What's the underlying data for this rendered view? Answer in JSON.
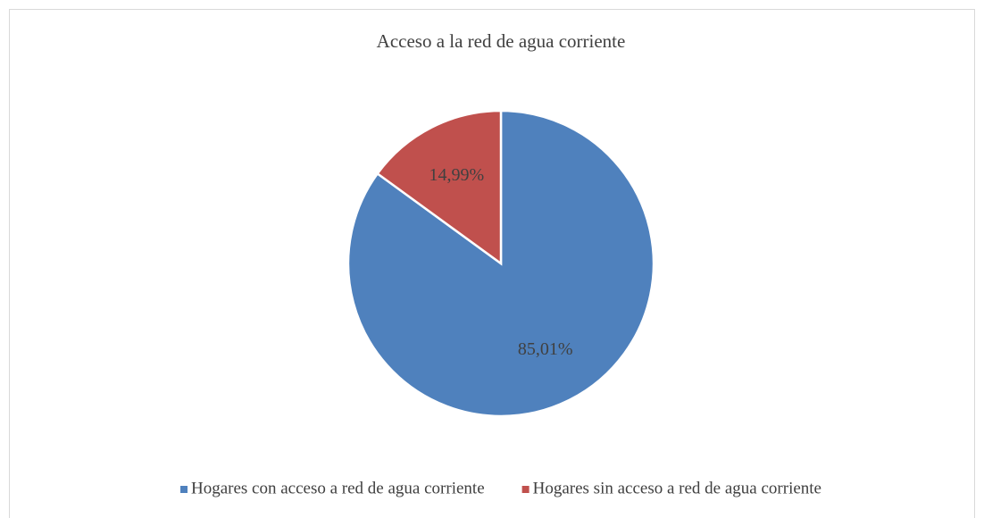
{
  "chart_data": {
    "type": "pie",
    "title": "Acceso a la red de agua corriente",
    "categories": [
      "Hogares con acceso a red de agua corriente",
      "Hogares sin acceso a red de agua corriente"
    ],
    "values": [
      85.01,
      14.99
    ],
    "value_labels": [
      "85,01%",
      "14,99%"
    ],
    "colors": [
      "#4f81bd",
      "#c0504d"
    ],
    "legend": "bottom"
  }
}
